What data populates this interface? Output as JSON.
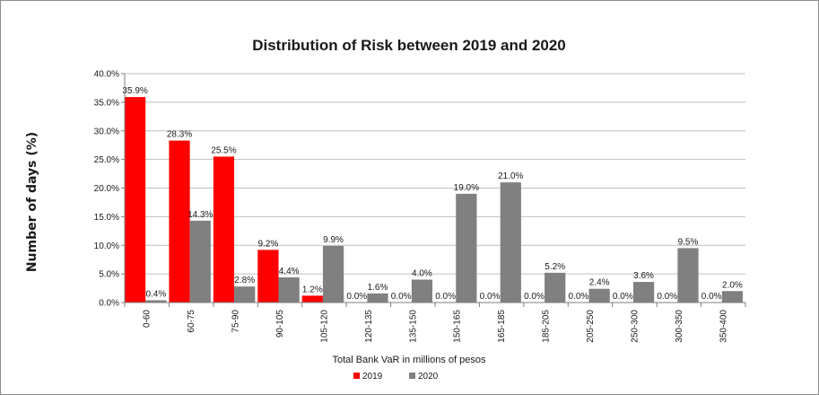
{
  "chart_data": {
    "type": "bar",
    "title": "Distribution of Risk between 2019 and 2020",
    "xlabel": "Total Bank VaR in millions of pesos",
    "ylabel": "Number of days (%)",
    "ylim": [
      0,
      40
    ],
    "ytick_step": 5,
    "ytick_labels": [
      "0.0%",
      "5.0%",
      "10.0%",
      "15.0%",
      "20.0%",
      "25.0%",
      "30.0%",
      "35.0%",
      "40.0%"
    ],
    "grid": true,
    "legend_position": "bottom",
    "categories": [
      "0-60",
      "60-75",
      "75-90",
      "90-105",
      "105-120",
      "120-135",
      "135-150",
      "150-165",
      "165-185",
      "185-205",
      "205-250",
      "250-300",
      "300-350",
      "350-400"
    ],
    "series": [
      {
        "name": "2019",
        "color": "#ff0000",
        "values": [
          35.9,
          28.3,
          25.5,
          9.2,
          1.2,
          0.0,
          0.0,
          0.0,
          0.0,
          0.0,
          0.0,
          0.0,
          0.0,
          0.0
        ],
        "labels": [
          "35.9%",
          "28.3%",
          "25.5%",
          "9.2%",
          "1.2%",
          "0.0%",
          "0.0%",
          "0.0%",
          "0.0%",
          "0.0%",
          "0.0%",
          "0.0%",
          "0.0%",
          "0.0%"
        ]
      },
      {
        "name": "2020",
        "color": "#808080",
        "values": [
          0.4,
          14.3,
          2.8,
          4.4,
          9.9,
          1.6,
          4.0,
          19.0,
          21.0,
          5.2,
          2.4,
          3.6,
          9.5,
          2.0
        ],
        "labels": [
          "0.4%",
          "14.3%",
          "2.8%",
          "4.4%",
          "9.9%",
          "1.6%",
          "4.0%",
          "19.0%",
          "21.0%",
          "5.2%",
          "2.4%",
          "3.6%",
          "9.5%",
          "2.0%"
        ]
      }
    ]
  }
}
